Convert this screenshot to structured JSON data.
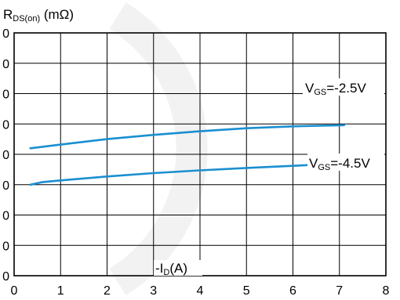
{
  "chart_data": {
    "type": "line",
    "title": "",
    "xlabel": "-ID(A)",
    "xlabel_main": "-I",
    "xlabel_sub": "D",
    "xlabel_unit": "(A)",
    "ylabel": "RDS(on) (mΩ)",
    "ylabel_main": "R",
    "ylabel_sub": "DS(on)",
    "ylabel_unit": " (mΩ)",
    "xlim": [
      0,
      8
    ],
    "ylim": [
      0,
      8
    ],
    "x_ticks": [
      "0",
      "1",
      "2",
      "3",
      "4",
      "5",
      "6",
      "7",
      "8"
    ],
    "y_ticks": [
      "0",
      "0",
      "0",
      "0",
      "0",
      "0",
      "0",
      "0",
      "0"
    ],
    "grid": true,
    "line_color": "#1a8fd0",
    "series": [
      {
        "name": "VGS=-2.5V",
        "label_main": "V",
        "label_sub": "GS",
        "label_rest": "=-2.5V",
        "x": [
          0.35,
          1,
          2,
          3,
          4,
          5,
          6,
          7.1
        ],
        "y": [
          4.2,
          4.32,
          4.5,
          4.64,
          4.76,
          4.86,
          4.92,
          4.96
        ]
      },
      {
        "name": "VGS=-4.5V",
        "label_main": "V",
        "label_sub": "GS",
        "label_rest": "=-4.5V",
        "x": [
          0.35,
          0.6,
          1,
          2,
          3,
          4,
          5,
          6,
          7.1
        ],
        "y": [
          3.0,
          3.08,
          3.14,
          3.27,
          3.38,
          3.47,
          3.55,
          3.62,
          3.7
        ]
      }
    ]
  }
}
